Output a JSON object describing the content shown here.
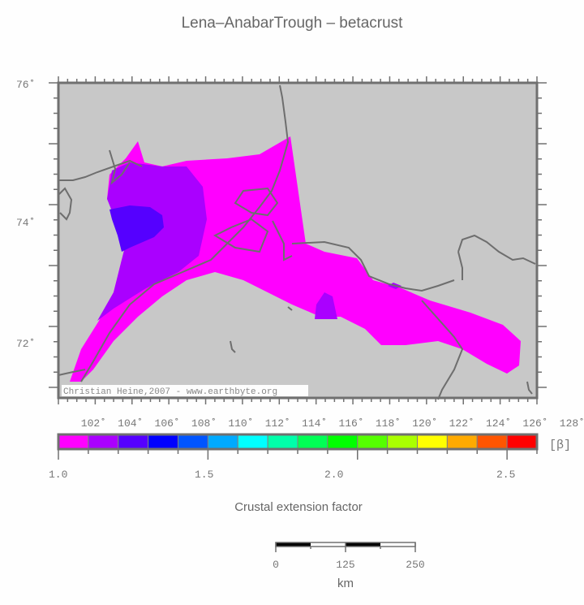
{
  "title": "Lena–AnabarTrough – betacrust",
  "map": {
    "background": "#c8c8c8",
    "lat_labels": [
      {
        "label": "76˚",
        "value": 76
      },
      {
        "label": "74˚",
        "value": 74
      },
      {
        "label": "72˚",
        "value": 72
      }
    ],
    "lon_labels": [
      "102˚",
      "104˚",
      "106˚",
      "108˚",
      "110˚",
      "112˚",
      "114˚",
      "116˚",
      "118˚",
      "120˚",
      "122˚",
      "124˚",
      "126˚",
      "128˚"
    ],
    "credit": "Christian Heine,2007 - www.earthbyte.org"
  },
  "colorbar": {
    "unit_label": "[β]",
    "colors": [
      "#ff00ff",
      "#aa00ff",
      "#5500ff",
      "#0000ff",
      "#0055ff",
      "#00aaff",
      "#00ffff",
      "#00ffaa",
      "#00ff55",
      "#00ff00",
      "#55ff00",
      "#aaff00",
      "#ffff00",
      "#ffaa00",
      "#ff5500",
      "#ff0000"
    ],
    "tick_labels": [
      "1.0",
      "1.5",
      "2.0",
      "2.5"
    ],
    "title": "Crustal extension factor"
  },
  "scalebar": {
    "labels": [
      "0",
      "125",
      "250"
    ],
    "unit": "km"
  }
}
